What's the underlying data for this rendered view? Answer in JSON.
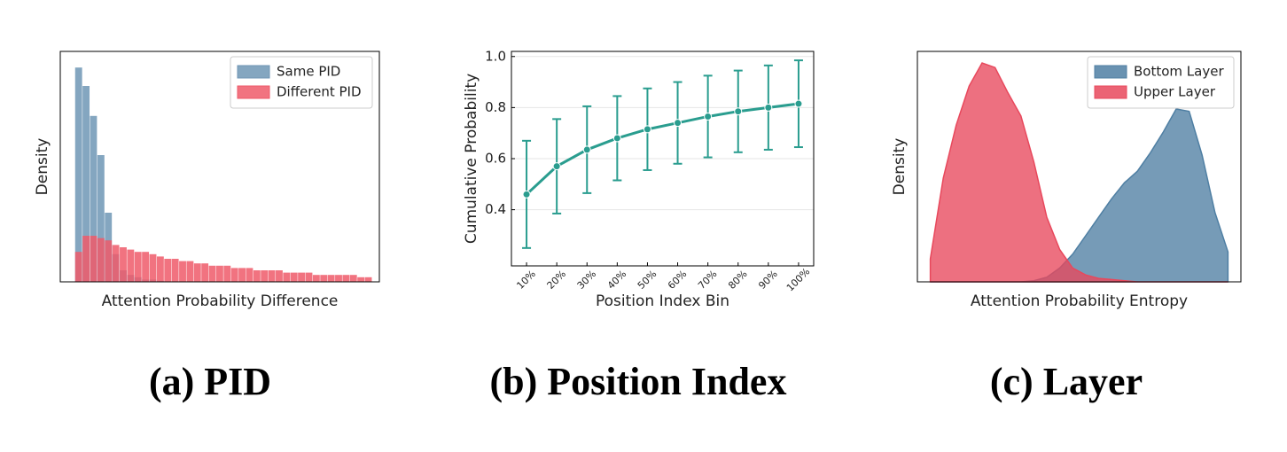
{
  "chart_data": [
    {
      "type": "histogram",
      "caption": "(a) PID",
      "xlabel": "Attention Probability Difference",
      "ylabel": "Density",
      "bins": [
        0,
        0.025,
        0.05,
        0.075,
        0.1,
        0.125,
        0.15,
        0.175,
        0.2,
        0.225,
        0.25,
        0.275,
        0.3,
        0.325,
        0.35,
        0.375,
        0.4,
        0.425,
        0.45,
        0.475,
        0.5,
        0.525,
        0.55,
        0.575,
        0.6,
        0.625,
        0.65,
        0.675,
        0.7,
        0.725,
        0.75,
        0.775,
        0.8,
        0.825,
        0.85,
        0.875,
        0.9,
        0.925,
        0.95,
        0.975,
        1
      ],
      "xlim": [
        -0.05,
        1.024
      ],
      "ylim": [
        0,
        1
      ],
      "legend": "upper right",
      "series": [
        {
          "name": "Same PID",
          "color": "#6f96b5",
          "values": [
            0.93,
            0.85,
            0.72,
            0.55,
            0.3,
            0.12,
            0.05,
            0.03,
            0.02,
            0.01,
            0.01,
            0.005,
            0,
            0,
            0,
            0,
            0,
            0,
            0,
            0,
            0,
            0,
            0,
            0,
            0,
            0,
            0,
            0,
            0,
            0,
            0,
            0,
            0,
            0,
            0,
            0,
            0,
            0,
            0,
            0
          ]
        },
        {
          "name": "Different PID",
          "color": "#ee5a6a",
          "values": [
            0.13,
            0.2,
            0.2,
            0.19,
            0.18,
            0.16,
            0.15,
            0.14,
            0.13,
            0.13,
            0.12,
            0.11,
            0.1,
            0.1,
            0.09,
            0.09,
            0.08,
            0.08,
            0.07,
            0.07,
            0.07,
            0.06,
            0.06,
            0.06,
            0.05,
            0.05,
            0.05,
            0.05,
            0.04,
            0.04,
            0.04,
            0.04,
            0.03,
            0.03,
            0.03,
            0.03,
            0.03,
            0.03,
            0.02,
            0.02
          ]
        }
      ]
    },
    {
      "type": "line",
      "caption": "(b) Position Index",
      "xlabel": "Position Index Bin",
      "ylabel": "Cumulative Probability",
      "categories": [
        "10%",
        "20%",
        "30%",
        "40%",
        "50%",
        "60%",
        "70%",
        "80%",
        "90%",
        "100%"
      ],
      "values": [
        0.46,
        0.57,
        0.635,
        0.68,
        0.715,
        0.74,
        0.765,
        0.785,
        0.8,
        0.815
      ],
      "errors": [
        0.21,
        0.185,
        0.17,
        0.165,
        0.16,
        0.16,
        0.16,
        0.16,
        0.165,
        0.17
      ],
      "color": "#2a9d8f",
      "ylim": [
        0.18,
        1.02
      ],
      "yticks": [
        0.4,
        0.6,
        0.8,
        {
          "value": 1,
          "label": "1.0"
        }
      ],
      "grid": true
    },
    {
      "type": "area",
      "caption": "(c) Layer",
      "xlabel": "Attention Probability Entropy",
      "ylabel": "Density",
      "x": [
        0.04,
        0.08,
        0.12,
        0.16,
        0.2,
        0.24,
        0.28,
        0.32,
        0.36,
        0.4,
        0.44,
        0.48,
        0.52,
        0.56,
        0.6,
        0.64,
        0.68,
        0.72,
        0.76,
        0.8,
        0.84,
        0.88,
        0.92,
        0.96
      ],
      "xlim": [
        0,
        1
      ],
      "ylim": [
        0,
        1
      ],
      "legend": "upper right",
      "series": [
        {
          "name": "Bottom Layer",
          "color": "#4f7fa3",
          "values": [
            0,
            0,
            0,
            0,
            0,
            0,
            0,
            0,
            0.005,
            0.02,
            0.06,
            0.12,
            0.2,
            0.28,
            0.36,
            0.43,
            0.48,
            0.56,
            0.65,
            0.75,
            0.74,
            0.55,
            0.3,
            0.13
          ]
        },
        {
          "name": "Upper Layer",
          "color": "#e8485c",
          "values": [
            0.1,
            0.45,
            0.68,
            0.85,
            0.95,
            0.93,
            0.82,
            0.72,
            0.52,
            0.28,
            0.14,
            0.06,
            0.03,
            0.015,
            0.01,
            0.005,
            0,
            0,
            0,
            0,
            0,
            0,
            0,
            0
          ]
        }
      ]
    }
  ]
}
